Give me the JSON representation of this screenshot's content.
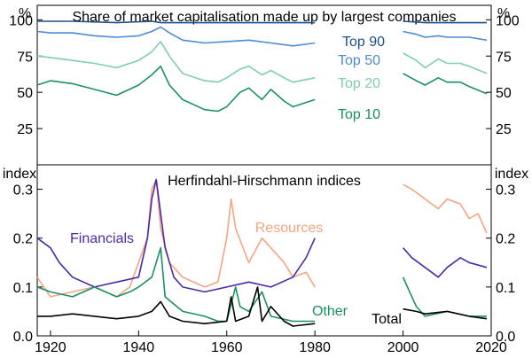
{
  "chart_data": [
    {
      "type": "line",
      "title": "Share of market capitalisation made up by largest companies",
      "ylabel_left": "%",
      "ylabel_right": "%",
      "ylim": [
        0,
        110
      ],
      "yticks": [
        "25",
        "50",
        "75",
        "100"
      ],
      "ytick_values": [
        25,
        50,
        75,
        100
      ],
      "gap_years": [
        1980,
        2000
      ],
      "series": [
        {
          "name": "Top 90",
          "label": "Top 90",
          "color": "#1f4e8c",
          "points": [
            [
              1917,
              99
            ],
            [
              1925,
              99
            ],
            [
              1935,
              98
            ],
            [
              1943,
              99
            ],
            [
              1945,
              98
            ],
            [
              1955,
              98
            ],
            [
              1965,
              98
            ],
            [
              1975,
              98
            ],
            [
              1980,
              98
            ],
            [
              2000,
              99
            ],
            [
              2005,
              98
            ],
            [
              2010,
              98
            ],
            [
              2015,
              98
            ],
            [
              2019,
              98
            ]
          ]
        },
        {
          "name": "Top 50",
          "label": "Top 50",
          "color": "#4c8bd6",
          "points": [
            [
              1917,
              92
            ],
            [
              1920,
              91
            ],
            [
              1925,
              91
            ],
            [
              1930,
              89
            ],
            [
              1935,
              88
            ],
            [
              1940,
              89
            ],
            [
              1943,
              92
            ],
            [
              1945,
              95
            ],
            [
              1947,
              91
            ],
            [
              1950,
              86
            ],
            [
              1955,
              84
            ],
            [
              1960,
              85
            ],
            [
              1965,
              86
            ],
            [
              1970,
              84
            ],
            [
              1975,
              82
            ],
            [
              1980,
              84
            ],
            [
              2000,
              92
            ],
            [
              2003,
              90
            ],
            [
              2005,
              88
            ],
            [
              2008,
              89
            ],
            [
              2010,
              88
            ],
            [
              2015,
              88
            ],
            [
              2019,
              86
            ]
          ]
        },
        {
          "name": "Top 20",
          "label": "Top 20",
          "color": "#7ecfae",
          "points": [
            [
              1917,
              75
            ],
            [
              1920,
              74
            ],
            [
              1925,
              72
            ],
            [
              1930,
              70
            ],
            [
              1935,
              67
            ],
            [
              1940,
              72
            ],
            [
              1943,
              78
            ],
            [
              1945,
              85
            ],
            [
              1947,
              75
            ],
            [
              1950,
              63
            ],
            [
              1955,
              58
            ],
            [
              1958,
              57
            ],
            [
              1960,
              60
            ],
            [
              1963,
              66
            ],
            [
              1965,
              68
            ],
            [
              1968,
              62
            ],
            [
              1970,
              65
            ],
            [
              1973,
              60
            ],
            [
              1975,
              57
            ],
            [
              1980,
              60
            ],
            [
              2000,
              77
            ],
            [
              2003,
              72
            ],
            [
              2005,
              67
            ],
            [
              2008,
              73
            ],
            [
              2010,
              70
            ],
            [
              2013,
              70
            ],
            [
              2015,
              68
            ],
            [
              2019,
              63
            ]
          ]
        },
        {
          "name": "Top 10",
          "label": "Top 10",
          "color": "#1a9161",
          "points": [
            [
              1917,
              55
            ],
            [
              1920,
              58
            ],
            [
              1925,
              56
            ],
            [
              1930,
              52
            ],
            [
              1935,
              48
            ],
            [
              1940,
              55
            ],
            [
              1943,
              62
            ],
            [
              1945,
              68
            ],
            [
              1947,
              55
            ],
            [
              1950,
              45
            ],
            [
              1955,
              38
            ],
            [
              1958,
              37
            ],
            [
              1960,
              40
            ],
            [
              1963,
              50
            ],
            [
              1965,
              53
            ],
            [
              1968,
              45
            ],
            [
              1970,
              52
            ],
            [
              1973,
              44
            ],
            [
              1975,
              40
            ],
            [
              1980,
              45
            ],
            [
              2000,
              63
            ],
            [
              2003,
              58
            ],
            [
              2005,
              55
            ],
            [
              2008,
              60
            ],
            [
              2010,
              57
            ],
            [
              2013,
              57
            ],
            [
              2015,
              54
            ],
            [
              2019,
              49
            ]
          ]
        }
      ]
    },
    {
      "type": "line",
      "title": "Herfindahl-Hirschmann indices",
      "ylabel_left": "index",
      "ylabel_right": "index",
      "ylim": [
        0,
        0.35
      ],
      "yticks": [
        "0.0",
        "0.1",
        "0.2",
        "0.3"
      ],
      "ytick_values": [
        0,
        0.1,
        0.2,
        0.3
      ],
      "xlim": [
        1917,
        2020
      ],
      "xticks": [
        "1920",
        "1940",
        "1960",
        "1980",
        "2000",
        "2020"
      ],
      "xtick_values": [
        1920,
        1940,
        1960,
        1980,
        2000,
        2020
      ],
      "gap_years": [
        1980,
        2000
      ],
      "series": [
        {
          "name": "Resources",
          "label": "Resources",
          "color": "#f4a582",
          "points": [
            [
              1917,
              0.12
            ],
            [
              1920,
              0.08
            ],
            [
              1925,
              0.09
            ],
            [
              1930,
              0.1
            ],
            [
              1935,
              0.08
            ],
            [
              1938,
              0.1
            ],
            [
              1940,
              0.15
            ],
            [
              1942,
              0.2
            ],
            [
              1943,
              0.3
            ],
            [
              1944,
              0.32
            ],
            [
              1945,
              0.22
            ],
            [
              1947,
              0.15
            ],
            [
              1950,
              0.12
            ],
            [
              1955,
              0.1
            ],
            [
              1958,
              0.11
            ],
            [
              1960,
              0.2
            ],
            [
              1961,
              0.28
            ],
            [
              1962,
              0.22
            ],
            [
              1965,
              0.15
            ],
            [
              1968,
              0.2
            ],
            [
              1970,
              0.18
            ],
            [
              1973,
              0.15
            ],
            [
              1975,
              0.12
            ],
            [
              1978,
              0.13
            ],
            [
              1980,
              0.1
            ],
            [
              2000,
              0.31
            ],
            [
              2002,
              0.3
            ],
            [
              2005,
              0.28
            ],
            [
              2008,
              0.26
            ],
            [
              2010,
              0.28
            ],
            [
              2013,
              0.27
            ],
            [
              2015,
              0.24
            ],
            [
              2017,
              0.25
            ],
            [
              2019,
              0.21
            ]
          ]
        },
        {
          "name": "Financials",
          "label": "Financials",
          "color": "#4b2aa8",
          "points": [
            [
              1917,
              0.2
            ],
            [
              1920,
              0.18
            ],
            [
              1922,
              0.15
            ],
            [
              1925,
              0.12
            ],
            [
              1930,
              0.1
            ],
            [
              1935,
              0.11
            ],
            [
              1940,
              0.12
            ],
            [
              1942,
              0.2
            ],
            [
              1943,
              0.28
            ],
            [
              1944,
              0.32
            ],
            [
              1945,
              0.25
            ],
            [
              1946,
              0.18
            ],
            [
              1948,
              0.12
            ],
            [
              1950,
              0.1
            ],
            [
              1955,
              0.09
            ],
            [
              1960,
              0.1
            ],
            [
              1965,
              0.11
            ],
            [
              1970,
              0.1
            ],
            [
              1975,
              0.12
            ],
            [
              1978,
              0.16
            ],
            [
              1980,
              0.2
            ],
            [
              2000,
              0.18
            ],
            [
              2002,
              0.16
            ],
            [
              2005,
              0.14
            ],
            [
              2008,
              0.12
            ],
            [
              2010,
              0.14
            ],
            [
              2013,
              0.16
            ],
            [
              2015,
              0.15
            ],
            [
              2019,
              0.14
            ]
          ]
        },
        {
          "name": "Other",
          "label": "Other",
          "color": "#1a9161",
          "points": [
            [
              1917,
              0.1
            ],
            [
              1920,
              0.09
            ],
            [
              1925,
              0.08
            ],
            [
              1930,
              0.1
            ],
            [
              1935,
              0.08
            ],
            [
              1938,
              0.09
            ],
            [
              1940,
              0.1
            ],
            [
              1943,
              0.12
            ],
            [
              1945,
              0.18
            ],
            [
              1946,
              0.08
            ],
            [
              1950,
              0.05
            ],
            [
              1955,
              0.04
            ],
            [
              1958,
              0.03
            ],
            [
              1960,
              0.03
            ],
            [
              1962,
              0.1
            ],
            [
              1963,
              0.06
            ],
            [
              1965,
              0.05
            ],
            [
              1968,
              0.09
            ],
            [
              1970,
              0.04
            ],
            [
              1975,
              0.03
            ],
            [
              1980,
              0.03
            ],
            [
              2000,
              0.12
            ],
            [
              2002,
              0.08
            ],
            [
              2003,
              0.06
            ],
            [
              2005,
              0.04
            ],
            [
              2010,
              0.05
            ],
            [
              2015,
              0.04
            ],
            [
              2019,
              0.04
            ]
          ]
        },
        {
          "name": "Total",
          "label": "Total",
          "color": "#000000",
          "points": [
            [
              1917,
              0.04
            ],
            [
              1920,
              0.04
            ],
            [
              1925,
              0.045
            ],
            [
              1930,
              0.04
            ],
            [
              1935,
              0.035
            ],
            [
              1940,
              0.04
            ],
            [
              1943,
              0.05
            ],
            [
              1945,
              0.07
            ],
            [
              1947,
              0.04
            ],
            [
              1950,
              0.03
            ],
            [
              1955,
              0.025
            ],
            [
              1960,
              0.03
            ],
            [
              1961,
              0.08
            ],
            [
              1962,
              0.03
            ],
            [
              1965,
              0.04
            ],
            [
              1967,
              0.1
            ],
            [
              1968,
              0.03
            ],
            [
              1970,
              0.06
            ],
            [
              1973,
              0.03
            ],
            [
              1975,
              0.02
            ],
            [
              1980,
              0.025
            ],
            [
              2000,
              0.055
            ],
            [
              2003,
              0.05
            ],
            [
              2005,
              0.045
            ],
            [
              2010,
              0.05
            ],
            [
              2015,
              0.04
            ],
            [
              2019,
              0.035
            ]
          ]
        }
      ]
    }
  ]
}
